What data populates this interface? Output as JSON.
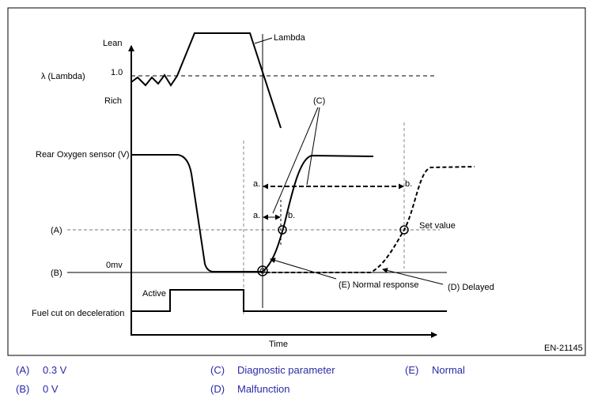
{
  "figure": {
    "lambda_label": "λ  (Lambda)",
    "lean": "Lean",
    "rich": "Rich",
    "one_point_zero": "1.0",
    "lambda_curve_label": "Lambda",
    "rear_o2_label": "Rear Oxygen sensor  (V)",
    "axis_a": "(A)",
    "axis_b": "(B)",
    "zero_mv": "0mv",
    "fuel_cut_label": "Fuel cut on deceleration",
    "active": "Active",
    "time": "Time",
    "c_label": "(C)",
    "a_label_1": "a.",
    "a_label_2": "a.",
    "b_label_1": "b.",
    "b_label_2": "b.",
    "set_value": "Set value",
    "normal_response": "(E) Normal response",
    "delayed": "(D) Delayed",
    "code": "EN-21145"
  },
  "legend": [
    {
      "key": "(A)",
      "text": "0.3 V"
    },
    {
      "key": "(C)",
      "text": "Diagnostic parameter"
    },
    {
      "key": "(E)",
      "text": "Normal"
    },
    {
      "key": "(B)",
      "text": "0 V"
    },
    {
      "key": "(D)",
      "text": "Malfunction"
    }
  ]
}
